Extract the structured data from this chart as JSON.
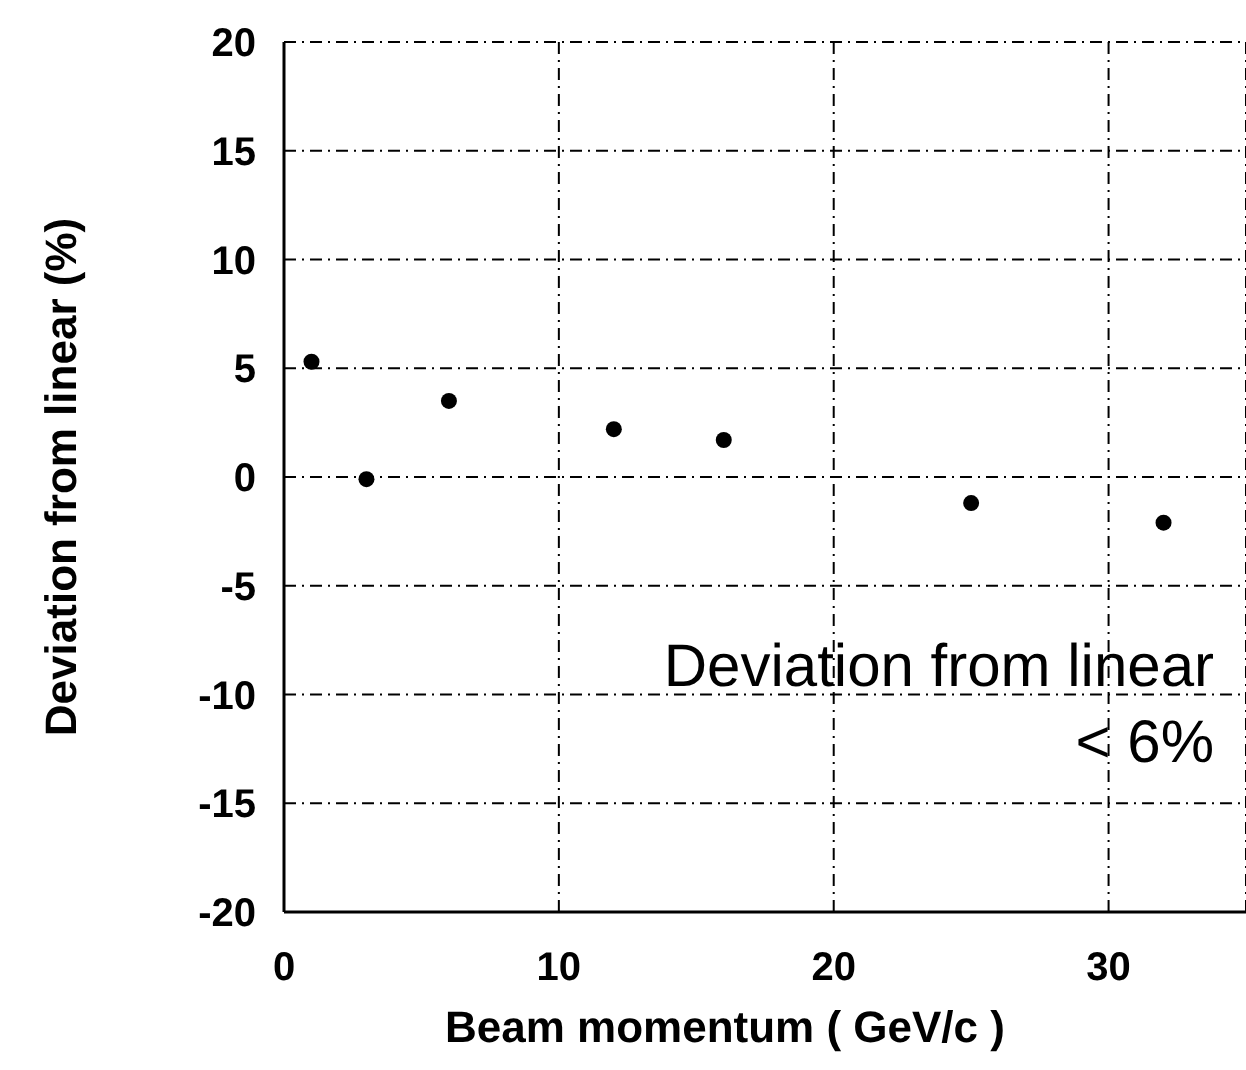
{
  "chart_data": {
    "type": "scatter",
    "xlabel": "Beam momentum     ( GeV/c )",
    "ylabel": "Deviation from linear (%)",
    "x": [
      1,
      3,
      6,
      12,
      16,
      25,
      32
    ],
    "series": [
      {
        "color": "#000000",
        "values": [
          5.3,
          -0.1,
          3.5,
          2.2,
          1.7,
          -1.2,
          -2.1
        ]
      }
    ],
    "xlim": [
      0,
      35
    ],
    "xticks": [
      0,
      10,
      20,
      30
    ],
    "ylim": [
      -20,
      20
    ],
    "yticks": [
      -20,
      -15,
      -10,
      -5,
      0,
      5,
      10,
      15,
      20
    ],
    "grid": true,
    "marker": "circle",
    "legend": false,
    "annotations": [
      "Deviation from linear",
      "< 6%"
    ]
  }
}
